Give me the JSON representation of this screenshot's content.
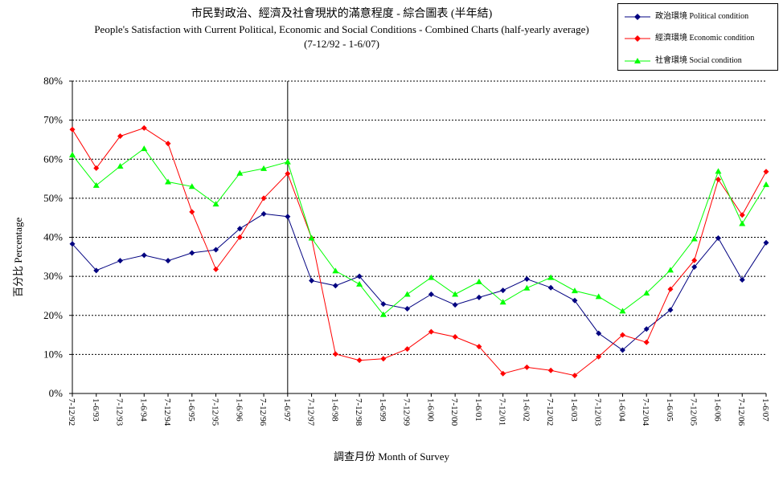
{
  "title": {
    "zh": "市民對政治、經濟及社會現狀的滿意程度 - 綜合圖表 (半年結)",
    "en": "People's Satisfaction with Current Political, Economic and Social Conditions - Combined Charts (half-yearly average)",
    "range": "(7-12/92 - 1-6/07)"
  },
  "chart_data": {
    "type": "line",
    "ylabel": "百分比 Percentage",
    "xlabel": "調查月份 Month of Survey",
    "ylim": [
      0,
      80
    ],
    "y_ticks": [
      "0%",
      "10%",
      "20%",
      "30%",
      "40%",
      "50%",
      "60%",
      "70%",
      "80%"
    ],
    "grid": "horizontal dashed",
    "legend_position": "top-right",
    "reference_line_at": "1-6/97",
    "categories": [
      "7-12/92",
      "1-6/93",
      "7-12/93",
      "1-6/94",
      "7-12/94",
      "1-6/95",
      "7-12/95",
      "1-6/96",
      "7-12/96",
      "1-6/97",
      "7-12/97",
      "1-6/98",
      "7-12/98",
      "1-6/99",
      "7-12/99",
      "1-6/00",
      "7-12/00",
      "1-6/01",
      "7-12/01",
      "1-6/02",
      "7-12/02",
      "1-6/03",
      "7-12/03",
      "1-6/04",
      "7-12/04",
      "1-6/05",
      "7-12/05",
      "1-6/06",
      "7-12/06",
      "1-6/07"
    ],
    "series": [
      {
        "name": "政治環境 Political condition",
        "color": "#000080",
        "marker": "diamond",
        "values": [
          38.3,
          31.5,
          34.0,
          35.4,
          34.0,
          36.0,
          36.8,
          42.2,
          46.0,
          45.3,
          28.9,
          27.6,
          30.0,
          22.9,
          21.7,
          25.4,
          22.7,
          24.6,
          26.4,
          29.3,
          27.1,
          23.8,
          15.4,
          11.1,
          16.5,
          21.4,
          32.4,
          39.8,
          29.1,
          38.6
        ]
      },
      {
        "name": "經濟環境 Economic condition",
        "color": "#ff0000",
        "marker": "diamond",
        "values": [
          67.6,
          57.7,
          65.9,
          68.0,
          64.0,
          46.5,
          31.8,
          40.0,
          50.0,
          56.3,
          39.8,
          10.1,
          8.5,
          8.9,
          11.4,
          15.8,
          14.5,
          12.0,
          5.1,
          6.7,
          5.9,
          4.6,
          9.4,
          15.0,
          13.1,
          26.7,
          34.1,
          54.8,
          45.7,
          56.8
        ]
      },
      {
        "name": "社會環境 Social condition",
        "color": "#00ff00",
        "marker": "triangle",
        "values": [
          61.1,
          53.3,
          58.2,
          62.7,
          54.2,
          53.0,
          48.5,
          56.4,
          57.6,
          59.3,
          39.8,
          31.4,
          28.0,
          20.2,
          25.4,
          29.7,
          25.4,
          28.6,
          23.4,
          27.0,
          29.7,
          26.3,
          24.8,
          21.1,
          25.7,
          31.6,
          39.6,
          56.9,
          43.5,
          53.5
        ]
      }
    ]
  }
}
